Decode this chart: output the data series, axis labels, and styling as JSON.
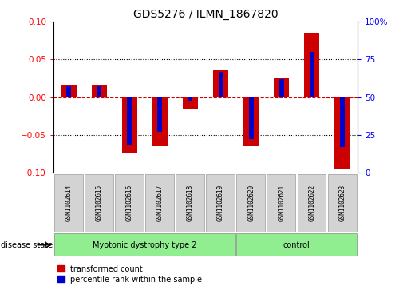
{
  "title": "GDS5276 / ILMN_1867820",
  "samples": [
    "GSM1102614",
    "GSM1102615",
    "GSM1102616",
    "GSM1102617",
    "GSM1102618",
    "GSM1102619",
    "GSM1102620",
    "GSM1102621",
    "GSM1102622",
    "GSM1102623"
  ],
  "red_values": [
    0.015,
    0.015,
    -0.075,
    -0.065,
    -0.015,
    0.037,
    -0.065,
    0.025,
    0.085,
    -0.095
  ],
  "blue_values": [
    0.57,
    0.57,
    0.18,
    0.27,
    0.47,
    0.67,
    0.22,
    0.62,
    0.8,
    0.17
  ],
  "groups": [
    {
      "label": "Myotonic dystrophy type 2",
      "start": 0,
      "end": 6,
      "color": "#90EE90"
    },
    {
      "label": "control",
      "start": 6,
      "end": 10,
      "color": "#90EE90"
    }
  ],
  "ylim_left": [
    -0.1,
    0.1
  ],
  "ylim_right": [
    0,
    100
  ],
  "yticks_left": [
    -0.1,
    -0.05,
    0,
    0.05,
    0.1
  ],
  "yticks_right": [
    0,
    25,
    50,
    75,
    100
  ],
  "red_color": "#CC0000",
  "blue_color": "#0000CC",
  "zero_line_color": "#CC0000",
  "disease_label": "disease state",
  "legend_red": "transformed count",
  "legend_blue": "percentile rank within the sample",
  "bg_color": "#FFFFFF",
  "sample_box_color": "#D3D3D3"
}
